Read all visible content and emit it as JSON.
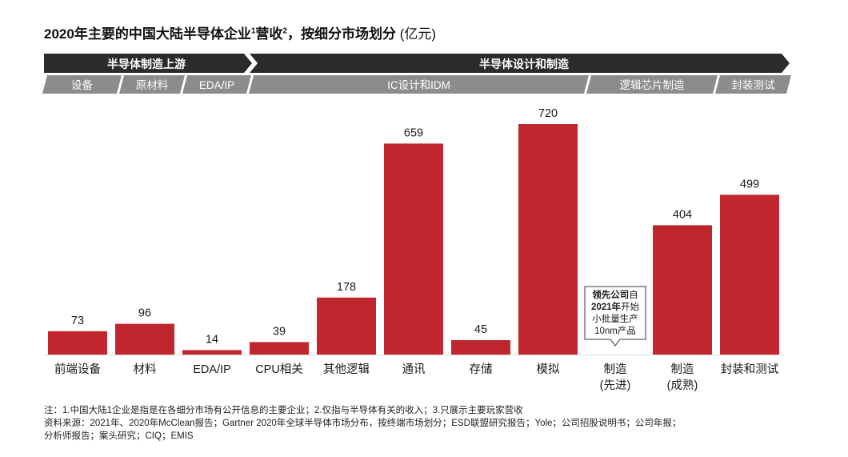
{
  "title": {
    "main": "2020年主要的中国大陆半导体企业",
    "sup1": "1",
    "mid": "营收",
    "sup2": "2",
    "tail": "，按细分市场划分",
    "unit": "(亿元)"
  },
  "header": {
    "groups": [
      "半导体制造上游",
      "半导体设计和制造"
    ],
    "subgroups": [
      "设备",
      "原材料",
      "EDA/IP",
      "IC设计和IDM",
      "逻辑芯片制造",
      "封装测试"
    ]
  },
  "colors": {
    "bar": "#c0262d",
    "header_dark": "#2b2b2b",
    "header_gray": "#8c8c8c"
  },
  "chart_data": {
    "type": "bar",
    "title": "2020年主要的中国大陆半导体企业营收，按细分市场划分 (亿元)",
    "categories": [
      [
        "前端设备"
      ],
      [
        "材料"
      ],
      [
        "EDA/IP"
      ],
      [
        "CPU相关"
      ],
      [
        "其他逻辑"
      ],
      [
        "通讯"
      ],
      [
        "存储"
      ],
      [
        "模拟"
      ],
      [
        "制造",
        "(先进)"
      ],
      [
        "制造",
        "(成熟)"
      ],
      [
        "封装和测试"
      ]
    ],
    "values": [
      73,
      96,
      14,
      39,
      178,
      659,
      45,
      720,
      null,
      404,
      499
    ],
    "value_labels": [
      "73",
      "96",
      "14",
      "39",
      "178",
      "659",
      "45",
      "720",
      "",
      "404",
      "499"
    ],
    "ylim": [
      0,
      720
    ],
    "grid": false,
    "annotation": {
      "category_index": 8,
      "lines": [
        {
          "bold": "领先公司",
          "normal": "自"
        },
        {
          "bold": "2021年",
          "normal": "开始"
        },
        {
          "bold": "",
          "normal": "小批量生产"
        },
        {
          "bold": "",
          "normal": "10nm产品"
        }
      ]
    }
  },
  "notes": {
    "line1": "注：1.中国大陆1企业是指是在各细分市场有公开信息的主要企业；2.仅指与半导体有关的收入；3.只展示主要玩家营收",
    "line2": "资料来源：2021年、2020年McClean报告；Gartner 2020年全球半导体市场分布，按终端市场划分；ESD联盟研究报告；Yole；公司招股说明书；公司年报；",
    "line3": "分析师报告；案头研究；CIQ；EMIS"
  }
}
